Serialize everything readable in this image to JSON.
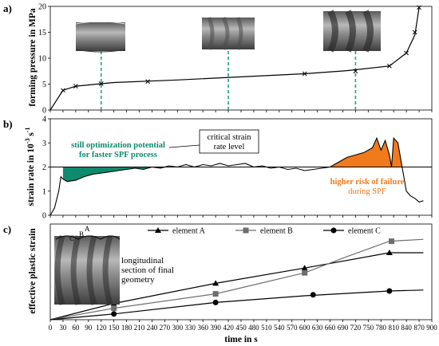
{
  "panel_labels": [
    "a)",
    "b)",
    "c)"
  ],
  "colors": {
    "green": "#0e8a6e",
    "green_dashed": "#1aa388",
    "orange": "#f07a1c",
    "grey": "#6e6e6e",
    "black": "#000000"
  },
  "chart_data": [
    {
      "type": "line",
      "panel": "a)",
      "ylabel": "forming pressure in MPa",
      "xlim": [
        0,
        900
      ],
      "ylim": [
        0,
        20
      ],
      "yticks": [
        "0",
        "5",
        "10",
        "15",
        "20"
      ],
      "series": [
        {
          "x": [
            0,
            30,
            60,
            150,
            300,
            450,
            600,
            700,
            800,
            840,
            860,
            870
          ],
          "y": [
            0,
            3.8,
            4.6,
            5.3,
            5.8,
            6.4,
            7.0,
            7.6,
            8.5,
            11.0,
            14.5,
            19.8
          ]
        }
      ],
      "markers_x": [
        30,
        60,
        120,
        230,
        600,
        720,
        800,
        840,
        860,
        870
      ],
      "markers_y": [
        3.8,
        4.6,
        5.1,
        5.5,
        7.0,
        7.5,
        8.5,
        11.0,
        15.0,
        19.8
      ],
      "dashed_lines_x": [
        120,
        420,
        720
      ]
    },
    {
      "type": "area",
      "panel": "b)",
      "ylabel": "strain rate in 10",
      "ylabel_sup": "-3",
      "ylabel_tail": " s",
      "ylabel_sup2": "-1",
      "xlim": [
        0,
        900
      ],
      "ylim": [
        0,
        4
      ],
      "yticks": [
        "0",
        "1",
        "2",
        "3",
        "4"
      ],
      "critical_level": 2.0,
      "series": [
        {
          "x": [
            0,
            10,
            20,
            25,
            30,
            40,
            60,
            80,
            100,
            120,
            140,
            160,
            180,
            200,
            220,
            240,
            260,
            280,
            300,
            320,
            340,
            360,
            380,
            400,
            420,
            440,
            460,
            480,
            500,
            520,
            540,
            560,
            580,
            600,
            620,
            640,
            660,
            680,
            700,
            720,
            740,
            760,
            770,
            780,
            790,
            800,
            805,
            810,
            820,
            830,
            840,
            850,
            860,
            870,
            880
          ],
          "y": [
            0,
            0.3,
            1.0,
            1.6,
            1.5,
            1.4,
            1.45,
            1.6,
            1.7,
            1.75,
            1.8,
            1.85,
            1.9,
            1.95,
            1.9,
            2.0,
            1.95,
            2.05,
            2.0,
            2.1,
            2.0,
            2.1,
            2.05,
            2.15,
            2.05,
            2.1,
            2.15,
            2.0,
            2.05,
            1.95,
            2.0,
            1.9,
            1.95,
            1.85,
            1.9,
            1.95,
            2.0,
            2.2,
            2.4,
            2.5,
            2.6,
            2.8,
            3.2,
            2.7,
            3.1,
            2.5,
            2.0,
            3.2,
            3.0,
            2.0,
            1.0,
            0.8,
            0.7,
            0.55,
            0.6
          ]
        }
      ],
      "annotations": {
        "left_1": "still optimization potential",
        "left_2": "for faster SPF process",
        "box_1": "critical strain",
        "box_2": "rate level",
        "right_1": "higher risk of failure",
        "right_2": "during SPF"
      }
    },
    {
      "type": "line",
      "panel": "c)",
      "ylabel": "effective plastic strain",
      "xlabel": "time in s",
      "xlim": [
        0,
        900
      ],
      "ylim": [
        0,
        1.0
      ],
      "xticks": [
        "0",
        "30",
        "60",
        "90",
        "120",
        "150",
        "180",
        "210",
        "240",
        "270",
        "300",
        "330",
        "360",
        "390",
        "420",
        "450",
        "480",
        "510",
        "540",
        "570",
        "600",
        "630",
        "660",
        "690",
        "720",
        "750",
        "780",
        "810",
        "840",
        "870",
        "900"
      ],
      "series": [
        {
          "name": "element A",
          "x": [
            0,
            150,
            390,
            600,
            800,
            880
          ],
          "y": [
            0,
            0.17,
            0.38,
            0.54,
            0.7,
            0.7
          ],
          "markers_x": [
            150,
            390,
            600,
            800
          ],
          "markers_y": [
            0.17,
            0.38,
            0.54,
            0.7
          ],
          "marker": "triangle"
        },
        {
          "name": "element B",
          "x": [
            0,
            150,
            390,
            600,
            700,
            800,
            880
          ],
          "y": [
            0,
            0.12,
            0.27,
            0.49,
            0.66,
            0.82,
            0.84
          ],
          "markers_x": [
            150,
            390,
            600,
            805
          ],
          "markers_y": [
            0.12,
            0.27,
            0.49,
            0.82
          ],
          "marker": "square"
        },
        {
          "name": "element C",
          "x": [
            0,
            150,
            390,
            600,
            800,
            880
          ],
          "y": [
            0,
            0.06,
            0.18,
            0.25,
            0.3,
            0.31
          ],
          "markers_x": [
            150,
            390,
            620,
            800
          ],
          "markers_y": [
            0.06,
            0.18,
            0.26,
            0.3
          ],
          "marker": "circle"
        }
      ],
      "inset_labels": [
        "C",
        "B",
        "A"
      ],
      "inset_caption": [
        "longitudinal",
        "section of final",
        "geometry"
      ]
    }
  ]
}
